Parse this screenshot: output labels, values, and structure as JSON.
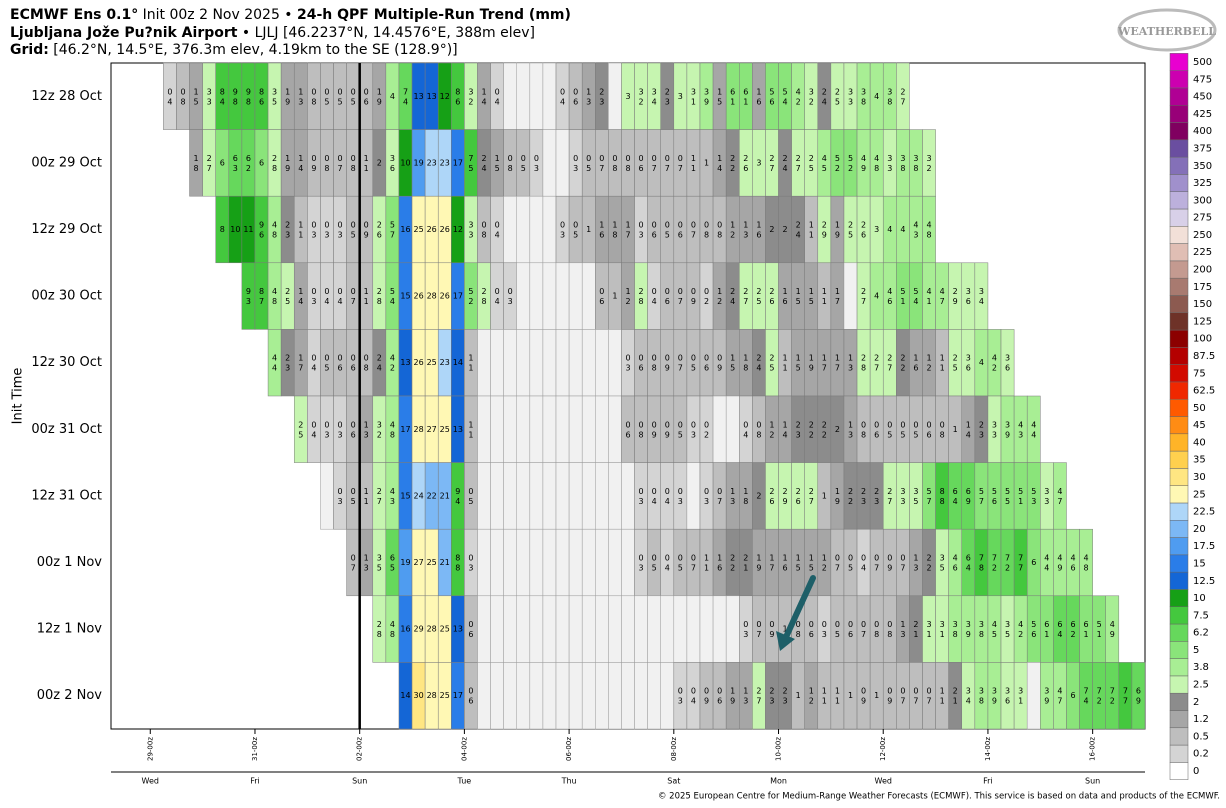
{
  "chart_data": {
    "type": "heatmap",
    "title": {
      "model": "ECMWF Ens 0.1°",
      "init": "Init 00z 2 Nov 2025 •",
      "product": "24-h QPF Multiple-Run Trend (mm)"
    },
    "location": {
      "name": "Ljubljana Jože Pu?nik Airport",
      "detail": "• LJLJ [46.2237°N, 14.4576°E, 388m elev]"
    },
    "grid_info": {
      "label": "Grid:",
      "detail": "[46.2°N, 14.5°E, 376.3m elev, 4.19km to the SE (128.9°)]"
    },
    "ylabel": "Init Time",
    "xlim": [
      -18,
      456
    ],
    "xticks": [
      {
        "value": 0,
        "label": "29-00z"
      },
      {
        "value": 48,
        "label": "31-00z"
      },
      {
        "value": 96,
        "label": "02-00z"
      },
      {
        "value": 144,
        "label": "04-00z"
      },
      {
        "value": 192,
        "label": "06-00z"
      },
      {
        "value": 240,
        "label": "08-00z"
      },
      {
        "value": 288,
        "label": "10-00z"
      },
      {
        "value": 336,
        "label": "12-00z"
      },
      {
        "value": 384,
        "label": "14-00z"
      },
      {
        "value": 432,
        "label": "16-00z"
      }
    ],
    "day_labels": [
      "Wed",
      "Fri",
      "Sun",
      "Tue",
      "Thu",
      "Sat",
      "Mon",
      "Wed",
      "Fri",
      "Sun"
    ],
    "init_line": 96,
    "rows": [
      {
        "name": "12z 28 Oct",
        "values": [
          0.4,
          0.8,
          1.5,
          3.3,
          8.4,
          9.8,
          9.8,
          8.6,
          3.5,
          1.9,
          1.3,
          0.8,
          0.5,
          0.5,
          0.5,
          0.6,
          1.9,
          4,
          7.4,
          13,
          13,
          12,
          8.6,
          3.2,
          1.4,
          0.4,
          null,
          null,
          null,
          null,
          0.4,
          0.6,
          1.3,
          2.3,
          null,
          3,
          3.2,
          3.4,
          2.3,
          3,
          3.1,
          3.9,
          1.5,
          6.1,
          6.1,
          1.6,
          5.6,
          5.4,
          4.2,
          3.2,
          2.4,
          2.5,
          3.3,
          3.8,
          4,
          3.8,
          2.7
        ]
      },
      {
        "name": "00z 29 Oct",
        "values": [
          1.8,
          2.7,
          6,
          6.3,
          6.2,
          6,
          2.8,
          1.9,
          1.4,
          0.9,
          0.8,
          0.7,
          0.8,
          1.1,
          2,
          3.6,
          10,
          19,
          23,
          23,
          17,
          7.5,
          2.4,
          1.5,
          0.8,
          0.5,
          0.3,
          null,
          null,
          0.3,
          0.5,
          0.7,
          0.8,
          0.8,
          0.6,
          0.7,
          0.7,
          0.7,
          1.1,
          1,
          1.4,
          2.2,
          2.6,
          3,
          2.7,
          2.4,
          2.7,
          2.5,
          4.5,
          5.2,
          5.2,
          4.9,
          4.8,
          3.3,
          3.8,
          3.8,
          3.2
        ]
      },
      {
        "name": "12z 29 Oct",
        "values": [
          8,
          10,
          11,
          9.6,
          4.8,
          2.3,
          1.1,
          0.3,
          0.3,
          0.3,
          0.5,
          0.9,
          2.6,
          5.7,
          16,
          25,
          26,
          26,
          12,
          3.3,
          0.8,
          0.4,
          null,
          null,
          null,
          null,
          0.3,
          0.5,
          1,
          1.6,
          1.8,
          1.7,
          0.3,
          0.6,
          0.5,
          0.6,
          0.7,
          0.8,
          0.8,
          1.2,
          1.3,
          1.6,
          2,
          2,
          2.4,
          1.1,
          2.9,
          1.9,
          2.5,
          2.6,
          3,
          4,
          4,
          4.3,
          4.8
        ]
      },
      {
        "name": "00z 30 Oct",
        "values": [
          9.3,
          8.7,
          4.8,
          2.5,
          1.4,
          0.3,
          0.4,
          0.4,
          0.7,
          1.1,
          2.8,
          5.4,
          15,
          26,
          28,
          26,
          17,
          5.2,
          2.8,
          0.4,
          0.3,
          null,
          null,
          null,
          null,
          null,
          null,
          0.6,
          1,
          1.2,
          2.8,
          0.4,
          0.6,
          0.7,
          0.9,
          0.2,
          1.2,
          2.4,
          2.7,
          2.5,
          2.6,
          1.6,
          1.5,
          1.5,
          1.1,
          1.7,
          null,
          2.7,
          4,
          4.6,
          5.1,
          5.4,
          4.1,
          4.7,
          2.9,
          3.6,
          3.4
        ]
      },
      {
        "name": "12z 30 Oct",
        "values": [
          4.4,
          2.3,
          1.7,
          0.4,
          0.5,
          0.6,
          0.6,
          0.8,
          2.4,
          4.2,
          13,
          26,
          25,
          23,
          14,
          1.1,
          null,
          null,
          null,
          null,
          null,
          null,
          null,
          null,
          null,
          null,
          null,
          0.3,
          0.6,
          0.8,
          0.9,
          0.7,
          0.5,
          0.6,
          0.9,
          1.5,
          1.8,
          2.4,
          2.5,
          1.1,
          1.5,
          1.9,
          1.7,
          1.7,
          1.3,
          2.8,
          2.7,
          2.7,
          2.2,
          1.6,
          1.2,
          1.1,
          2.5,
          3.6,
          4,
          4.2,
          3.6
        ]
      },
      {
        "name": "00z 31 Oct",
        "values": [
          2.5,
          0.4,
          0.3,
          0.3,
          0.6,
          1.3,
          3.2,
          4.8,
          17,
          28,
          27,
          25,
          13,
          1.1,
          null,
          null,
          null,
          null,
          null,
          null,
          null,
          null,
          null,
          null,
          null,
          0.6,
          0.8,
          0.9,
          0.9,
          0.5,
          0.3,
          0.2,
          null,
          null,
          0.4,
          0.8,
          1.2,
          1.4,
          2.3,
          2.2,
          2.2,
          2,
          1.3,
          0.8,
          0.6,
          0.5,
          0.5,
          0.5,
          0.6,
          0.8,
          1,
          1.4,
          2.3,
          3.3,
          3.9,
          4.3,
          4.4
        ]
      },
      {
        "name": "12z 31 Oct",
        "values": [
          null,
          0.3,
          0.5,
          1.1,
          2.7,
          4.3,
          15,
          24,
          22,
          21,
          9.4,
          0.5,
          null,
          null,
          null,
          null,
          null,
          null,
          null,
          null,
          null,
          null,
          null,
          null,
          0.3,
          0.4,
          0.4,
          0.3,
          null,
          0.3,
          0.7,
          1.3,
          1.8,
          2,
          2.6,
          2.9,
          2.6,
          2.7,
          1,
          1.9,
          2.2,
          2.3,
          2.3,
          2.7,
          3.3,
          3.5,
          5.7,
          8.8,
          6.4,
          6.9,
          5.7,
          5.6,
          5.5,
          5.1,
          5.3,
          3.3,
          4.7
        ]
      },
      {
        "name": "00z 1 Nov",
        "values": [
          0.7,
          1.3,
          3.5,
          6.5,
          19,
          27,
          25,
          21,
          8.8,
          0.3,
          null,
          null,
          null,
          null,
          null,
          null,
          null,
          null,
          null,
          null,
          null,
          null,
          0.3,
          0.5,
          0.4,
          0.5,
          0.7,
          1.1,
          1.6,
          2.2,
          2.1,
          1.9,
          1.7,
          1.6,
          1.5,
          1.5,
          1.2,
          0.7,
          0.5,
          0.4,
          0.7,
          0.9,
          0.7,
          1.3,
          2.2,
          3.5,
          4.6,
          6.4,
          7.8,
          7.2,
          7.2,
          7.7,
          6,
          4.4,
          4.9,
          4.6,
          4.8
        ]
      },
      {
        "name": "12z 1 Nov",
        "values": [
          2.8,
          4.8,
          16,
          29,
          28,
          25,
          13,
          0.6,
          null,
          null,
          null,
          null,
          null,
          null,
          null,
          null,
          null,
          null,
          null,
          null,
          null,
          null,
          null,
          null,
          null,
          null,
          null,
          null,
          0.3,
          0.7,
          0.9,
          1,
          0.8,
          0.6,
          0.3,
          0.5,
          0.6,
          0.7,
          0.8,
          0.8,
          1.3,
          2.1,
          3.1,
          3.1,
          3.8,
          3.9,
          3.8,
          4.5,
          3.5,
          4.2,
          5.6,
          6.1,
          6.4,
          6.2,
          6.1,
          5.1,
          4.9
        ]
      },
      {
        "name": "00z 2 Nov",
        "values": [
          14,
          30,
          28,
          25,
          17,
          0.6,
          null,
          null,
          null,
          null,
          null,
          null,
          null,
          null,
          null,
          null,
          null,
          null,
          null,
          null,
          null,
          0.3,
          0.4,
          0.9,
          0.6,
          1.9,
          1.3,
          2.7,
          2.3,
          2.3,
          1,
          1.2,
          1.1,
          1.1,
          1,
          0.9,
          1,
          0.9,
          0.7,
          0.7,
          0.7,
          1.1,
          2.1,
          3.4,
          3.8,
          3.9,
          3.6,
          3.1,
          null,
          3.9,
          4.7,
          6,
          7.4,
          7.2,
          7.2,
          7.7,
          6.9
        ]
      }
    ],
    "colorbar": {
      "levels": [
        0,
        0.2,
        0.5,
        1.2,
        2,
        2.5,
        3.8,
        5,
        6.2,
        7.5,
        10,
        12.5,
        15,
        17.5,
        20,
        22.5,
        25,
        30,
        35,
        40,
        45,
        50,
        62.5,
        75,
        87.5,
        100,
        125,
        150,
        175,
        200,
        225,
        250,
        275,
        300,
        325,
        350,
        375,
        400,
        425,
        450,
        475,
        500
      ],
      "colors": [
        "#ffffff",
        "#d4d4d4",
        "#bebebe",
        "#a6a6a6",
        "#8c8c8c",
        "#c6f5b0",
        "#a8ee94",
        "#8ae47a",
        "#66d85c",
        "#44c83e",
        "#16a016",
        "#1466d6",
        "#2a7de8",
        "#4f9cf0",
        "#7cb8f5",
        "#aed6f8",
        "#fff8b4",
        "#ffe682",
        "#ffd04e",
        "#ffb428",
        "#ff8c14",
        "#ff5a00",
        "#f02800",
        "#d20a00",
        "#b40000",
        "#8c0000",
        "#6e3228",
        "#8c5a50",
        "#a87a70",
        "#c49a90",
        "#e0beb4",
        "#f2e0d8",
        "#d8d0e8",
        "#bcb0dc",
        "#a090cc",
        "#8470b8",
        "#6a4ea0",
        "#800060",
        "#980078",
        "#b00094",
        "#cc00b0",
        "#e800d0"
      ]
    },
    "logo": "WEATHERBELL",
    "footer": "© 2025 European Centre for Medium-Range Weather Forecasts (ECMWF). This service is based on data and products of the ECMWF."
  }
}
